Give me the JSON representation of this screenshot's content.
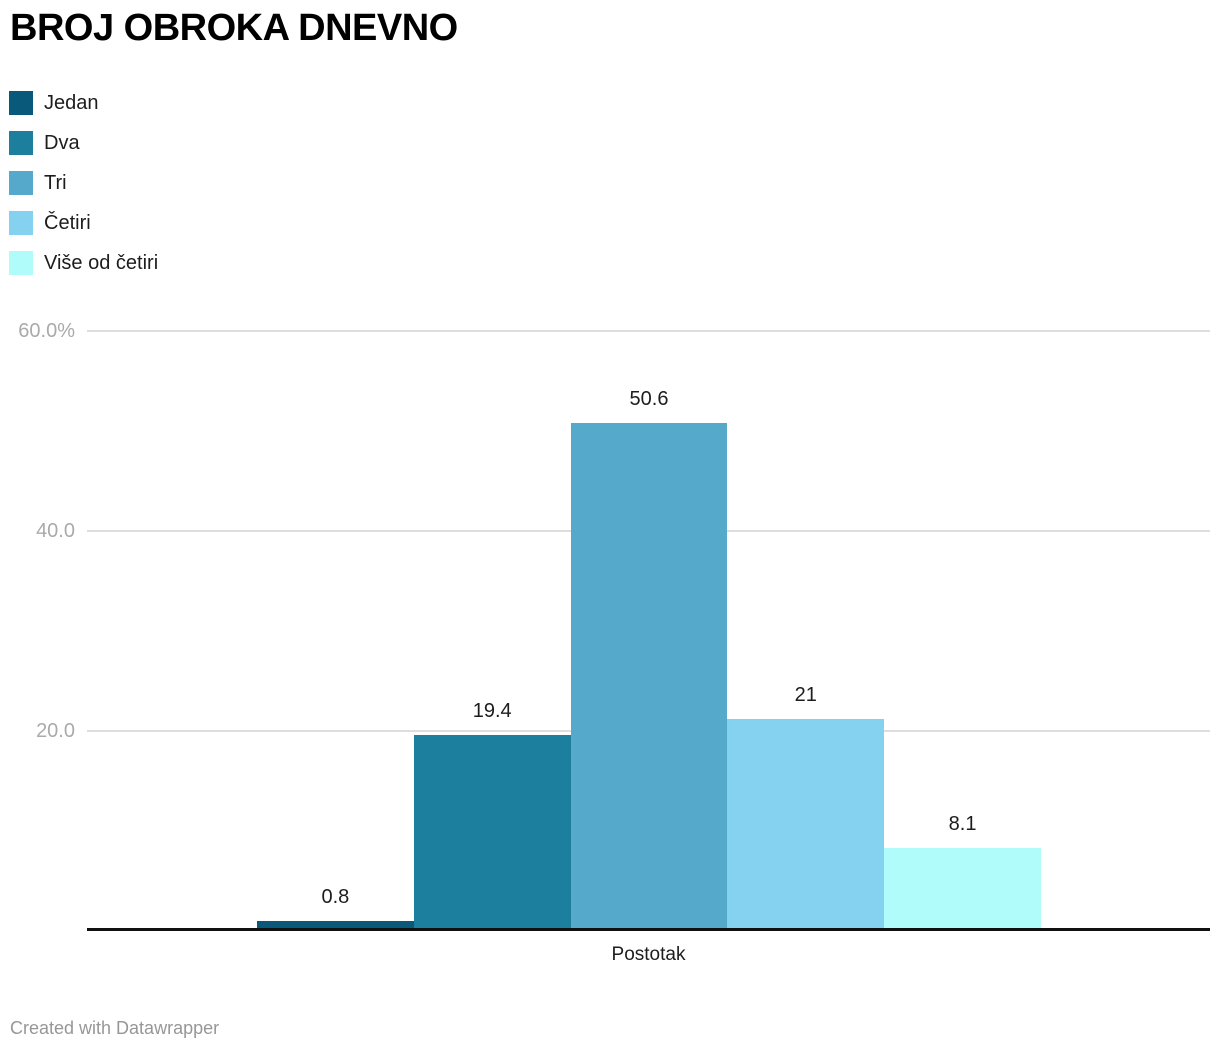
{
  "title": "BROJ OBROKA DNEVNO",
  "x_axis_label": "Postotak",
  "attribution": "Created with Datawrapper",
  "colors": {
    "background": "#ffffff",
    "grid": "#dedede",
    "axis_line": "#101010",
    "tick_text": "#aaaaaa",
    "label_text": "#1d1d1d",
    "attribution_text": "#979797"
  },
  "legend": {
    "items": [
      {
        "label": "Jedan",
        "color": "#09597a"
      },
      {
        "label": "Dva",
        "color": "#1d7f9e"
      },
      {
        "label": "Tri",
        "color": "#55a9cb"
      },
      {
        "label": "Četiri",
        "color": "#85d2f0"
      },
      {
        "label": "Više od četiri",
        "color": "#affcfb"
      }
    ]
  },
  "chart_data": {
    "type": "bar",
    "title": "BROJ OBROKA DNEVNO",
    "xlabel": "Postotak",
    "ylabel": "",
    "ylim": [
      0,
      60
    ],
    "grid": true,
    "legend_position": "top-left",
    "yticks": [
      {
        "value": 60,
        "label": "60.0%"
      },
      {
        "value": 40,
        "label": "40.0"
      },
      {
        "value": 20,
        "label": "20.0"
      }
    ],
    "categories": [
      "Jedan",
      "Dva",
      "Tri",
      "Četiri",
      "Više od četiri"
    ],
    "values": [
      0.8,
      19.4,
      50.6,
      21,
      8.1
    ],
    "value_labels": [
      "0.8",
      "19.4",
      "50.6",
      "21",
      "8.1"
    ],
    "bar_colors": [
      "#09597a",
      "#1d7f9e",
      "#55a9cb",
      "#85d2f0",
      "#affcfb"
    ]
  }
}
